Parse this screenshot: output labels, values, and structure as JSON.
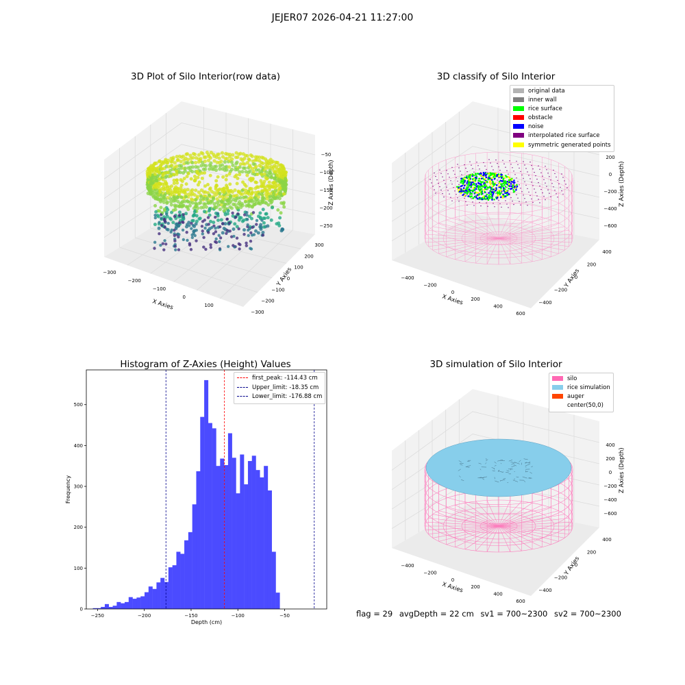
{
  "suptitle": "JEJER07 2026-04-21 11:27:00",
  "footer": {
    "flag": "flag = 29",
    "avg_depth": "avgDepth = 22 cm",
    "sv1": "sv1 = 700~2300",
    "sv2": "sv2 = 700~2300"
  },
  "colors": {
    "viridis_low": "#46317e",
    "viridis_mid": "#23a884",
    "viridis_high": "#d3e21b",
    "silo": "#ff69b4",
    "rice_simulation": "#87ceeb",
    "auger": "#ff4500",
    "hist_bars": "#4b4bff",
    "pane": "#f2f2f2",
    "pane_line": "#dcdcdc"
  },
  "chart_data": [
    {
      "type": "scatter",
      "title": "3D Plot of Silo Interior(row data)",
      "xlabel": "X Axies",
      "ylabel": "Y Axies",
      "zlabel": "Z Axies (Depth)",
      "x_ticks": [
        "−300",
        "−200",
        "−100",
        "0",
        "100"
      ],
      "y_ticks": [
        "300",
        "200",
        "100",
        "0",
        "−100",
        "−200",
        "−300"
      ],
      "z_ticks": [
        "−50",
        "−100",
        "−150",
        "−200",
        "−250"
      ],
      "xlim": [
        -320,
        170
      ],
      "ylim": [
        -320,
        320
      ],
      "zlim": [
        -270,
        -15
      ],
      "grid": true
    },
    {
      "type": "scatter",
      "title": "3D classify of Silo Interior",
      "xlabel": "X Axies",
      "ylabel": "Y Axies",
      "zlabel": "Z Axies (Depth)",
      "x_ticks": [
        "−400",
        "−200",
        "0",
        "200",
        "400",
        "600"
      ],
      "y_ticks": [
        "400",
        "200",
        "0",
        "−200",
        "−400"
      ],
      "z_ticks": [
        "200",
        "0",
        "−200",
        "−400",
        "−600"
      ],
      "xlim": [
        -480,
        620
      ],
      "ylim": [
        -500,
        500
      ],
      "zlim": [
        -700,
        350
      ],
      "grid": true,
      "legend_position": "top-right",
      "legend": [
        {
          "label": "original data",
          "color": "#b3b3b3"
        },
        {
          "label": "inner wall",
          "color": "#808080"
        },
        {
          "label": "rice surface",
          "color": "#00ff00"
        },
        {
          "label": "obstacle",
          "color": "#ff0000"
        },
        {
          "label": "noise",
          "color": "#0000ff"
        },
        {
          "label": "interpolated rice surface",
          "color": "#800080"
        },
        {
          "label": "symmetric generated points",
          "color": "#ffff00"
        }
      ]
    },
    {
      "type": "bar",
      "title": "Histogram of Z-Axies (Height) Values",
      "xlabel": "Depth (cm)",
      "ylabel": "Frequency",
      "xlim": [
        -262,
        -5
      ],
      "ylim": [
        0,
        585
      ],
      "x_ticks": [
        -250,
        -200,
        -150,
        -100,
        -50
      ],
      "y_ticks": [
        0,
        100,
        200,
        300,
        400,
        500
      ],
      "bin_start": -255,
      "bin_width": 4.25,
      "values": [
        2,
        2,
        5,
        12,
        5,
        8,
        17,
        14,
        17,
        29,
        25,
        28,
        31,
        41,
        55,
        49,
        65,
        76,
        66,
        102,
        107,
        140,
        135,
        168,
        188,
        256,
        337,
        470,
        560,
        455,
        442,
        350,
        368,
        352,
        430,
        370,
        283,
        378,
        305,
        362,
        375,
        340,
        322,
        350,
        290,
        140,
        40
      ],
      "vlines": [
        {
          "label": "first_peak: -114.43 cm",
          "x": -114.43,
          "color": "#ff0000"
        },
        {
          "label": "Upper_limit: -18.35 cm",
          "x": -18.35,
          "color": "#00008b"
        },
        {
          "label": "Lower_limit: -176.88 cm",
          "x": -176.88,
          "color": "#00008b"
        }
      ],
      "legend_position": "top-right",
      "grid": false
    },
    {
      "type": "scatter",
      "title": "3D simulation of Silo Interior",
      "xlabel": "X Axies",
      "ylabel": "Y Axies",
      "zlabel": "Z Axies (Depth)",
      "x_ticks": [
        "−400",
        "−200",
        "0",
        "200",
        "400",
        "600"
      ],
      "y_ticks": [
        "400",
        "200",
        "0",
        "−200",
        "−400"
      ],
      "z_ticks": [
        "400",
        "200",
        "0",
        "−200",
        "−400",
        "−600"
      ],
      "xlim": [
        -480,
        620
      ],
      "ylim": [
        -500,
        500
      ],
      "zlim": [
        -700,
        450
      ],
      "grid": true,
      "legend_position": "top-right",
      "legend": [
        {
          "label": "silo",
          "color": "#ff69b4"
        },
        {
          "label": "rice simulation",
          "color": "#87ceeb"
        },
        {
          "label": "auger",
          "color": "#ff4500"
        },
        {
          "label": "center(50,0)",
          "color": ""
        }
      ]
    }
  ]
}
